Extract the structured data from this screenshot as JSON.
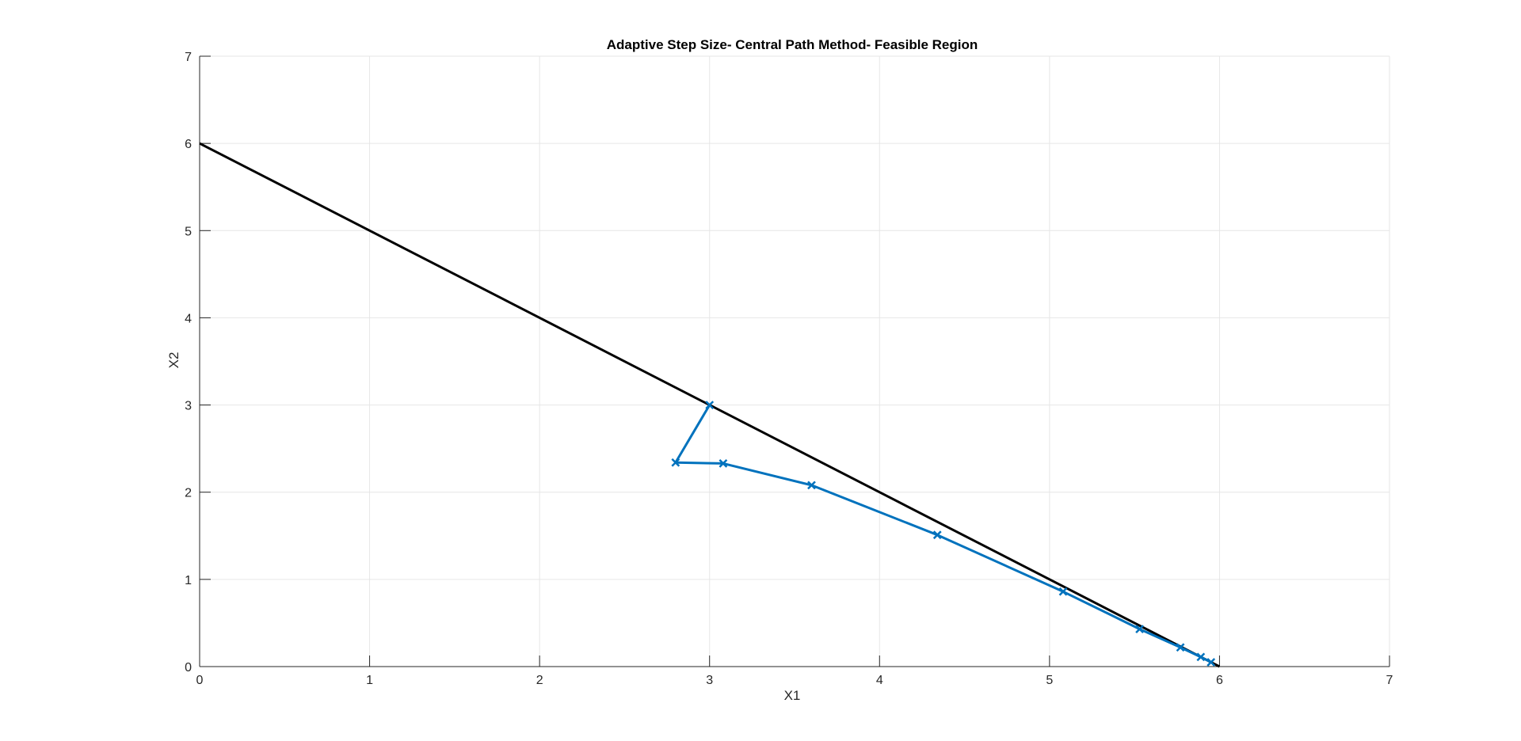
{
  "chart_data": {
    "type": "line",
    "title": "Adaptive Step Size- Central Path Method- Feasible Region",
    "xlabel": "X1",
    "ylabel": "X2",
    "xlim": [
      0,
      7
    ],
    "ylim": [
      0,
      7
    ],
    "xticks": [
      0,
      1,
      2,
      3,
      4,
      5,
      6,
      7
    ],
    "yticks": [
      0,
      1,
      2,
      3,
      4,
      5,
      6,
      7
    ],
    "grid": true,
    "series": [
      {
        "style": "solid-line",
        "color": "#000000",
        "x": [
          0,
          6
        ],
        "y": [
          6,
          0
        ]
      },
      {
        "style": "line-with-x-markers",
        "color": "#0072BD",
        "x": [
          3.0,
          2.8,
          3.08,
          3.6,
          4.34,
          5.08,
          5.53,
          5.77,
          5.89,
          5.95
        ],
        "y": [
          3.0,
          2.34,
          2.33,
          2.08,
          1.51,
          0.86,
          0.43,
          0.22,
          0.11,
          0.05
        ]
      }
    ]
  }
}
